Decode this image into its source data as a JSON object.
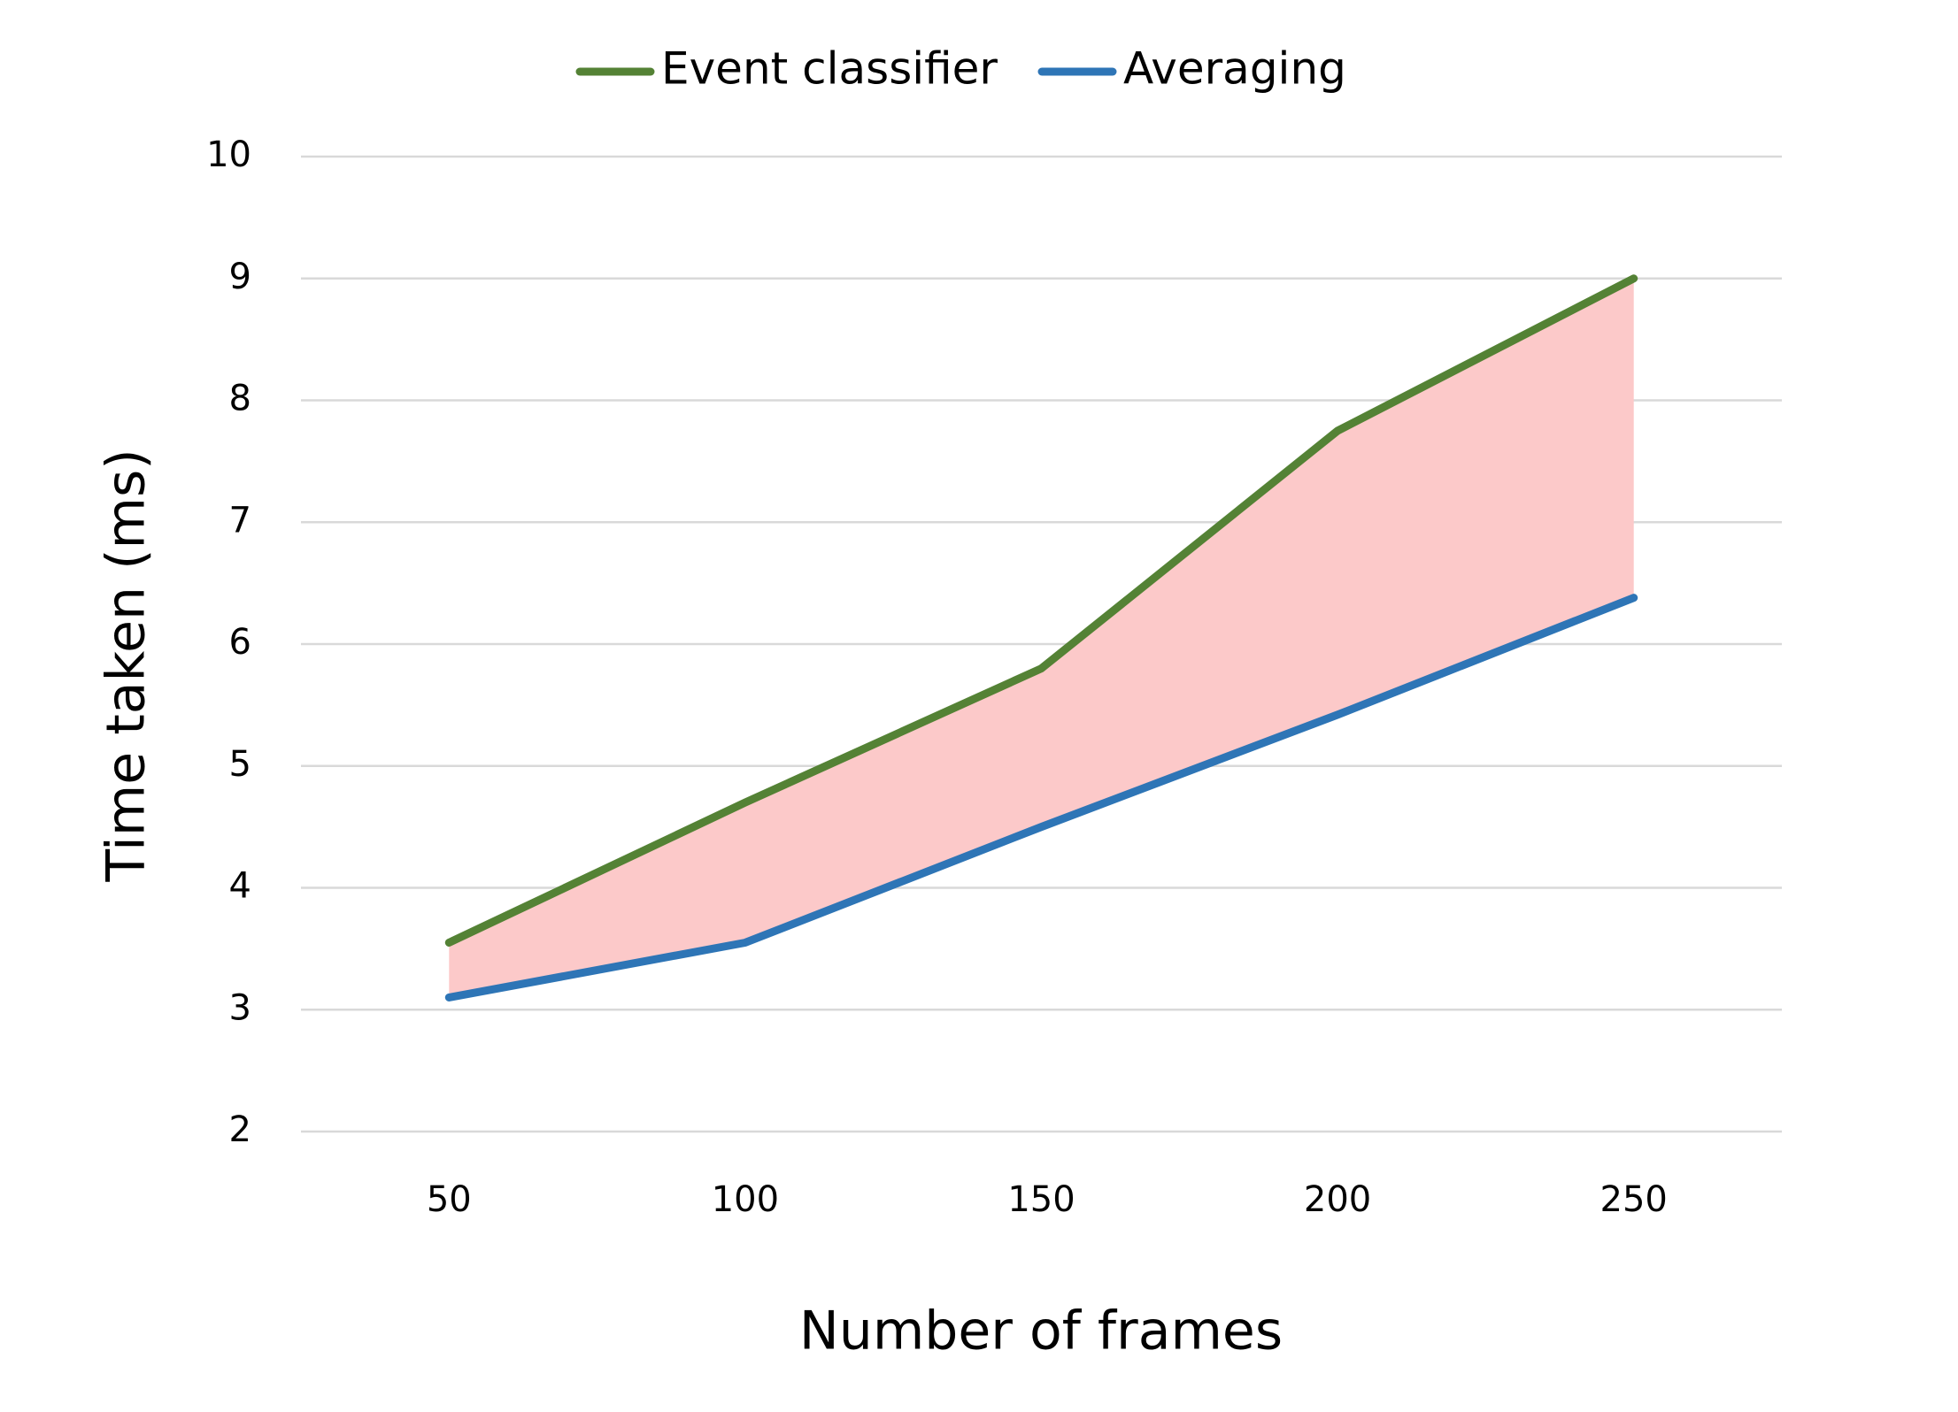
{
  "chart_data": {
    "type": "line",
    "x_label": "Number of frames",
    "y_label": "Time taken (ms)",
    "categories": [
      "50",
      "100",
      "150",
      "200",
      "250"
    ],
    "series": [
      {
        "name": "Event classifier",
        "color": "#548235",
        "values": [
          3.55,
          4.7,
          5.8,
          7.75,
          9.0
        ]
      },
      {
        "name": "Averaging",
        "color": "#2e75b6",
        "values": [
          3.1,
          3.55,
          4.5,
          5.42,
          6.38
        ]
      }
    ],
    "fill_between_color": "#fcc9c9",
    "ylim": [
      2,
      10
    ],
    "yticks": [
      2,
      3,
      4,
      5,
      6,
      7,
      8,
      9,
      10
    ],
    "grid": true,
    "legend": "top"
  }
}
